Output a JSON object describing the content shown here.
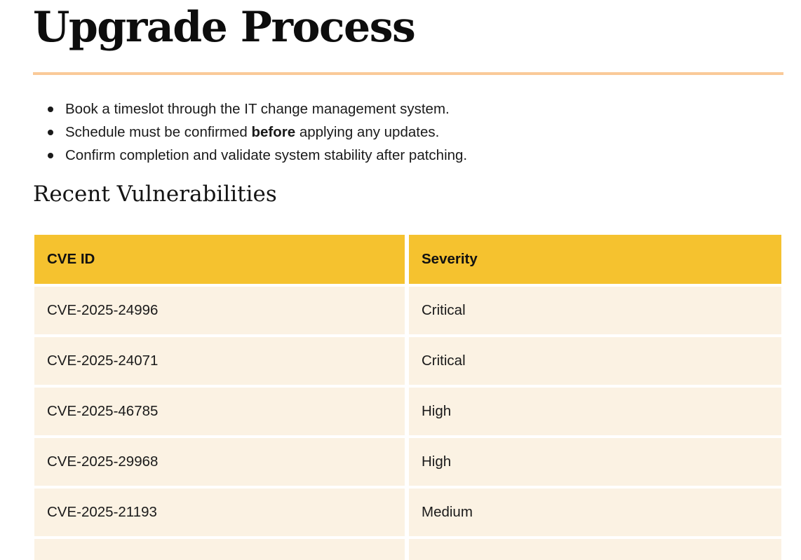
{
  "page": {
    "title": "Upgrade Process",
    "section_heading": "Recent Vulnerabilities"
  },
  "bullets": [
    {
      "text": "Book a timeslot through the IT change management system."
    },
    {
      "pre": "Schedule must be confirmed ",
      "bold": "before",
      "post": " applying any updates."
    },
    {
      "text": "Confirm completion and validate system stability after patching."
    }
  ],
  "table": {
    "headers": [
      "CVE ID",
      "Severity"
    ],
    "rows": [
      {
        "cve_id": "CVE-2025-24996",
        "severity": "Critical"
      },
      {
        "cve_id": "CVE-2025-24071",
        "severity": "Critical"
      },
      {
        "cve_id": "CVE-2025-46785",
        "severity": "High"
      },
      {
        "cve_id": "CVE-2025-29968",
        "severity": "High"
      },
      {
        "cve_id": "CVE-2025-21193",
        "severity": "Medium"
      }
    ]
  },
  "colors": {
    "table_header_bg": "#F5C22F",
    "table_row_bg": "#FBF2E3",
    "divider": "#FACA98",
    "text": "#191919"
  }
}
